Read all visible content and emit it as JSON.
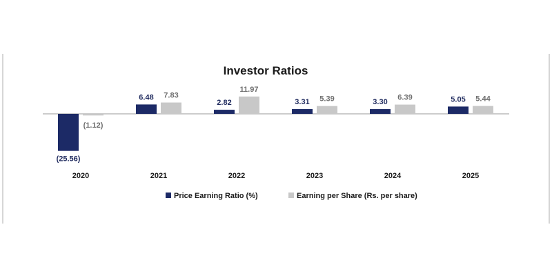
{
  "chart_data": {
    "type": "bar",
    "title": "Investor Ratios",
    "categories": [
      "2020",
      "2021",
      "2022",
      "2023",
      "2024",
      "2025"
    ],
    "series": [
      {
        "name": "Price Earning Ratio (%)",
        "values": [
          -25.56,
          6.48,
          2.82,
          3.31,
          3.3,
          5.05
        ],
        "labels": [
          "(25.56)",
          "6.48",
          "2.82",
          "3.31",
          "3.30",
          "5.05"
        ],
        "color": "#1c2a66"
      },
      {
        "name": "Earning per Share (Rs. per share)",
        "values": [
          -1.12,
          7.83,
          11.97,
          5.39,
          6.39,
          5.44
        ],
        "labels": [
          "(1.12)",
          "7.83",
          "11.97",
          "5.39",
          "6.39",
          "5.44"
        ],
        "color": "#c8c8c8"
      }
    ],
    "legend": "bottom-center",
    "grid": false
  }
}
